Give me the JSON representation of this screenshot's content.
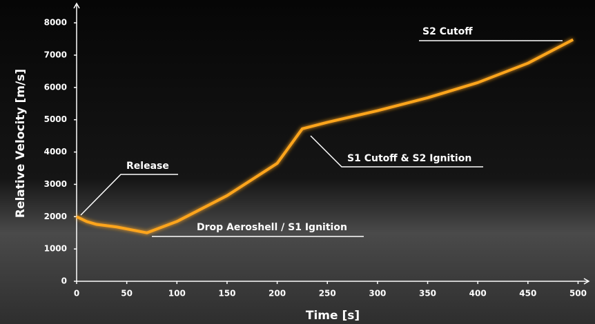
{
  "chart_data": {
    "type": "line",
    "xlabel": "Time [s]",
    "ylabel": "Relative Velocity [m/s]",
    "x": [
      0,
      10,
      20,
      40,
      70,
      100,
      150,
      200,
      225,
      250,
      300,
      350,
      400,
      450,
      495
    ],
    "values": [
      2000,
      1850,
      1760,
      1680,
      1500,
      1850,
      2650,
      3650,
      4720,
      4920,
      5280,
      5680,
      6150,
      6750,
      7480
    ],
    "color": "#ffa51f",
    "xlim": [
      0,
      510
    ],
    "ylim": [
      0,
      8600
    ],
    "xticks": [
      0,
      50,
      100,
      150,
      200,
      250,
      300,
      350,
      400,
      450,
      500
    ],
    "yticks": [
      0,
      1000,
      2000,
      3000,
      4000,
      5000,
      6000,
      7000,
      8000
    ],
    "annotations": [
      "Release",
      "Drop Aeroshell / S1 Ignition",
      "S1 Cutoff & S2 Ignition",
      "S2 Cutoff"
    ]
  }
}
